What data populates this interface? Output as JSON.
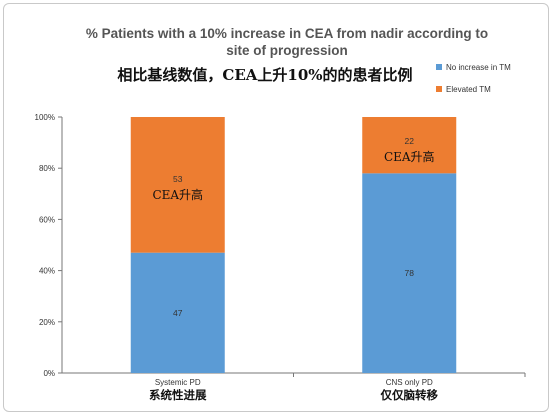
{
  "chart_data": {
    "type": "stacked-bar",
    "title_lines": [
      "% Patients with a 10% increase in CEA from nadir according to",
      "site of progression"
    ],
    "subtitle": "相比基线数值，CEA上升10%的的患者比例",
    "categories": [
      "Systemic PD",
      "CNS only PD"
    ],
    "categories_cn": [
      "系统性进展",
      "仅仅脑转移"
    ],
    "series": [
      {
        "name": "No increase in TM",
        "values": [
          47,
          78
        ],
        "color": "#5b9bd5"
      },
      {
        "name": "Elevated TM",
        "values": [
          53,
          22
        ],
        "color": "#ed7d31"
      }
    ],
    "annotations": [
      "CEA升高",
      "CEA升高"
    ],
    "y_ticks": [
      "0%",
      "20%",
      "40%",
      "60%",
      "80%",
      "100%"
    ],
    "ylim": [
      0,
      100
    ],
    "legend_position": "top-right"
  }
}
